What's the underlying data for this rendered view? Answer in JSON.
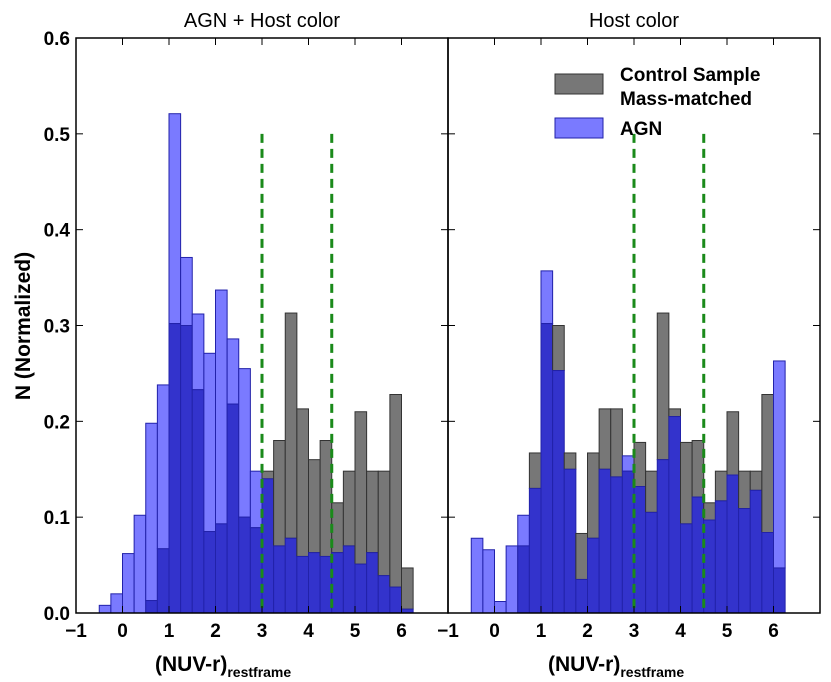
{
  "chart_data": {
    "type": "histogram",
    "ylabel": "N (Normalized)",
    "ylim": [
      0,
      0.6
    ],
    "xlim": [
      -1,
      7
    ],
    "yticks": [
      0.0,
      0.1,
      0.2,
      0.3,
      0.4,
      0.5,
      0.6
    ],
    "ytick_labels": [
      "0.0",
      "0.1",
      "0.2",
      "0.3",
      "0.4",
      "0.5",
      "0.6"
    ],
    "xticks": [
      -1,
      0,
      1,
      2,
      3,
      4,
      5,
      6
    ],
    "xtick_labels": [
      "−1",
      "0",
      "1",
      "2",
      "3",
      "4",
      "5",
      "6"
    ],
    "xlabel_main": "(NUV-r)",
    "xlabel_sub": "restframe",
    "bin_edges": [
      -0.5,
      -0.25,
      0.0,
      0.25,
      0.5,
      0.75,
      1.0,
      1.25,
      1.5,
      1.75,
      2.0,
      2.25,
      2.5,
      2.75,
      3.0,
      3.25,
      3.5,
      3.75,
      4.0,
      4.25,
      4.5,
      4.75,
      5.0,
      5.25,
      5.5,
      5.75,
      6.0,
      6.25
    ],
    "vlines": [
      3.0,
      4.5
    ],
    "colors": {
      "control_fill": "#777777",
      "control_edge": "#333333",
      "agn_fill": "#7a7aff",
      "overlap_fill": "#3333cc",
      "agn_edge": "#2222aa",
      "vline": "#1a8a1a"
    },
    "legend": {
      "control_line1": "Control Sample",
      "control_line2": "Mass-matched",
      "agn": "AGN"
    },
    "panels": [
      {
        "title": "AGN + Host color",
        "series": [
          {
            "name": "Control Sample Mass-matched",
            "values": [
              0.0,
              0.0,
              0.0,
              0.0,
              0.013,
              0.067,
              0.302,
              0.3,
              0.233,
              0.085,
              0.093,
              0.218,
              0.1,
              0.089,
              0.148,
              0.18,
              0.313,
              0.213,
              0.16,
              0.18,
              0.115,
              0.148,
              0.21,
              0.148,
              0.148,
              0.228,
              0.047
            ]
          },
          {
            "name": "AGN",
            "values": [
              0.008,
              0.02,
              0.062,
              0.102,
              0.198,
              0.238,
              0.521,
              0.371,
              0.312,
              0.271,
              0.337,
              0.286,
              0.255,
              0.148,
              0.14,
              0.07,
              0.078,
              0.059,
              0.063,
              0.059,
              0.063,
              0.07,
              0.051,
              0.063,
              0.039,
              0.027,
              0.004
            ]
          }
        ]
      },
      {
        "title": "Host color",
        "series": [
          {
            "name": "Control Sample Mass-matched",
            "values": [
              0.0,
              0.0,
              0.0,
              0.0,
              0.07,
              0.167,
              0.302,
              0.3,
              0.167,
              0.083,
              0.167,
              0.213,
              0.213,
              0.148,
              0.178,
              0.148,
              0.313,
              0.213,
              0.178,
              0.18,
              0.115,
              0.148,
              0.21,
              0.148,
              0.148,
              0.228,
              0.047
            ]
          },
          {
            "name": "AGN",
            "values": [
              0.078,
              0.066,
              0.012,
              0.07,
              0.102,
              0.13,
              0.357,
              0.253,
              0.15,
              0.035,
              0.078,
              0.15,
              0.142,
              0.164,
              0.132,
              0.105,
              0.16,
              0.205,
              0.093,
              0.121,
              0.097,
              0.117,
              0.144,
              0.109,
              0.128,
              0.084,
              0.263
            ]
          }
        ]
      }
    ]
  }
}
